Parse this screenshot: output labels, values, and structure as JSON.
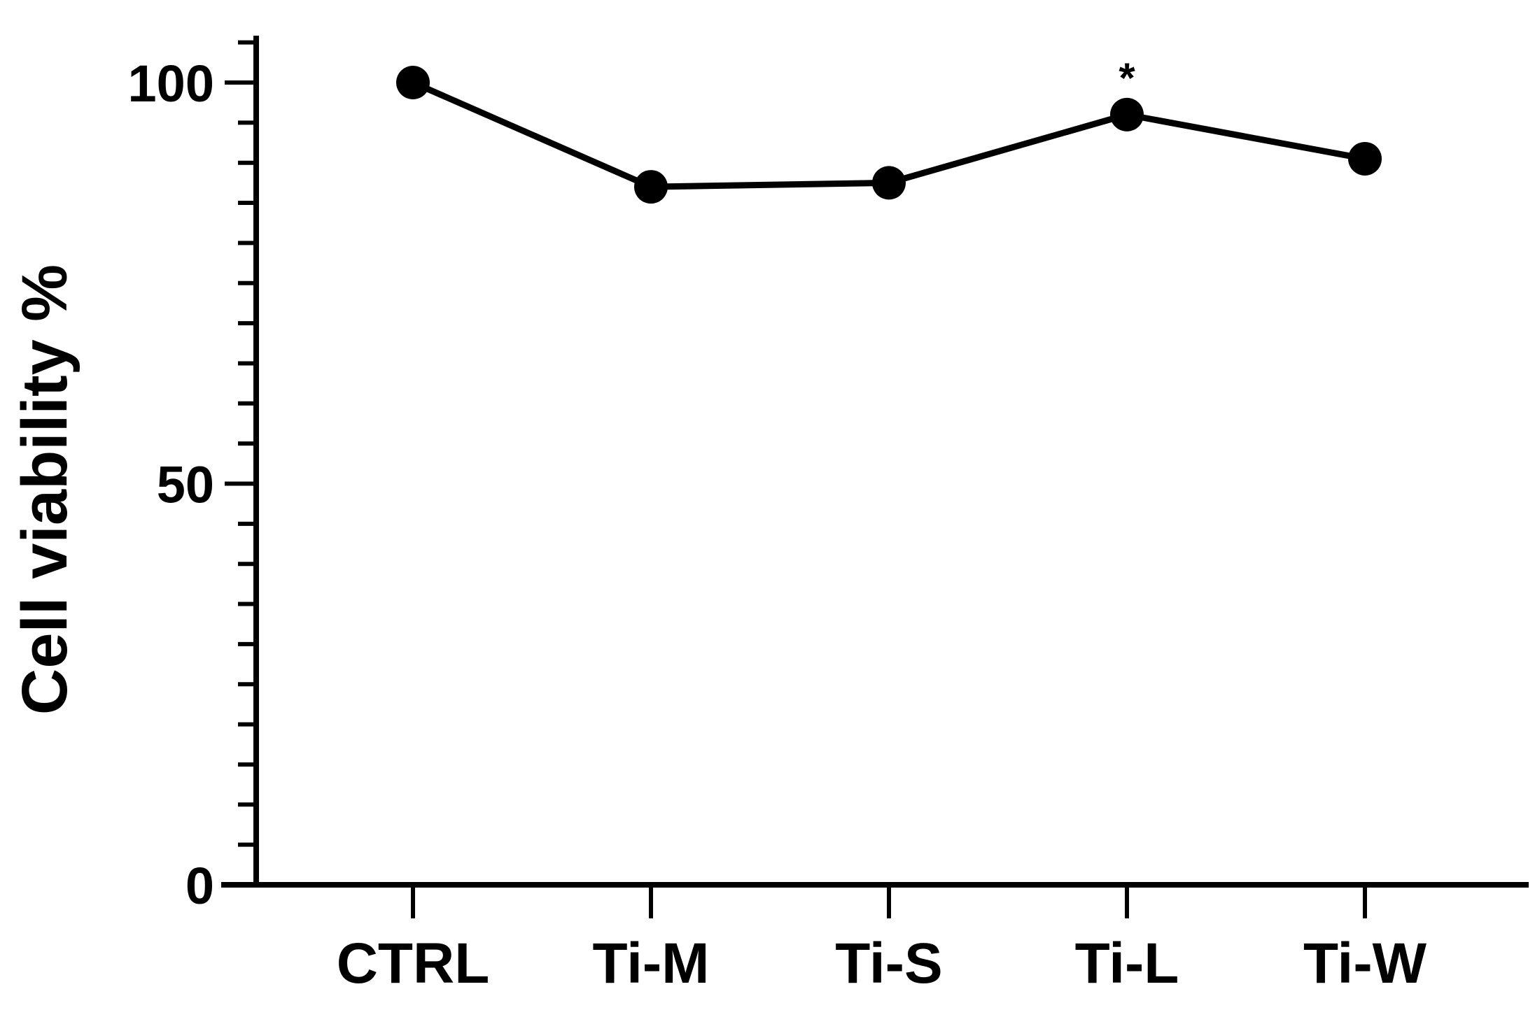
{
  "chart_data": {
    "type": "line",
    "title": "",
    "xlabel": "",
    "ylabel": "Cell viability %",
    "categories": [
      "CTRL",
      "Ti-M",
      "Ti-S",
      "Ti-L",
      "Ti-W"
    ],
    "series": [
      {
        "values": [
          100,
          87,
          87.5,
          96,
          90.5
        ]
      }
    ],
    "ylim": [
      0,
      105
    ],
    "y_major_ticks": [
      0,
      50,
      100
    ],
    "y_major_tick_labels": [
      "0",
      "50",
      "100"
    ],
    "y_minor_step": 5,
    "annotations": [
      {
        "category": "Ti-L",
        "text": "*"
      }
    ],
    "grid": false,
    "legend": "none",
    "colors": {
      "line": "#000000",
      "marker": "#000000"
    }
  }
}
